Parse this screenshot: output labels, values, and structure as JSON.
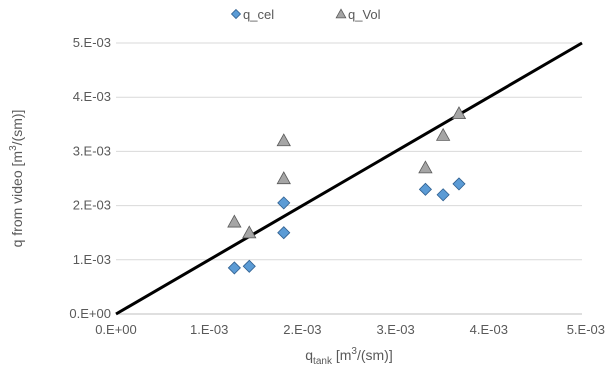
{
  "chart_data": {
    "type": "scatter",
    "title": "",
    "xlabel": {
      "main": "q",
      "sub": "tank",
      "unit": " [m",
      "sup": "3",
      "tail": "/(sm)]"
    },
    "ylabel": {
      "main": "q from video [m",
      "sup": "3",
      "tail": "/(sm)]"
    },
    "xlim": [
      0,
      0.005
    ],
    "ylim": [
      0,
      0.005
    ],
    "xticks": [
      "0.E+00",
      "1.E-03",
      "2.E-03",
      "3.E-03",
      "4.E-03",
      "5.E-03"
    ],
    "yticks": [
      "0.E+00",
      "1.E-03",
      "2.E-03",
      "3.E-03",
      "4.E-03",
      "5.E-03"
    ],
    "grid": {
      "horizontal": true,
      "vertical": false
    },
    "legend_position": "top",
    "series": [
      {
        "name": "q_cel",
        "marker": "diamond",
        "color": "#5b9bd5",
        "stroke": "#2f5f8f",
        "points": [
          [
            0.00127,
            0.00085
          ],
          [
            0.00143,
            0.00088
          ],
          [
            0.0018,
            0.0015
          ],
          [
            0.0018,
            0.00205
          ],
          [
            0.00332,
            0.0023
          ],
          [
            0.00351,
            0.0022
          ],
          [
            0.00368,
            0.0024
          ]
        ]
      },
      {
        "name": "q_Vol",
        "marker": "triangle",
        "color": "#a5a5a5",
        "stroke": "#595959",
        "points": [
          [
            0.00127,
            0.0017
          ],
          [
            0.00143,
            0.0015
          ],
          [
            0.0018,
            0.0025
          ],
          [
            0.0018,
            0.0032
          ],
          [
            0.00332,
            0.0027
          ],
          [
            0.00351,
            0.0033
          ],
          [
            0.00368,
            0.0037
          ]
        ]
      }
    ],
    "reference_line": {
      "from": [
        0,
        0
      ],
      "to": [
        0.005,
        0.005
      ],
      "color": "#000000"
    }
  }
}
